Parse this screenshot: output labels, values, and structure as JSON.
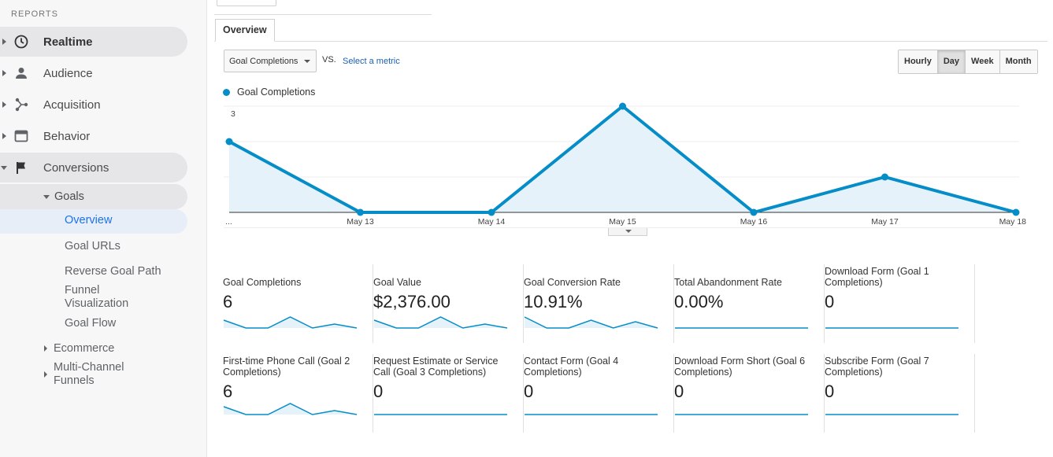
{
  "sidebar": {
    "heading": "REPORTS",
    "items": [
      {
        "label": "Realtime",
        "icon": "clock-icon"
      },
      {
        "label": "Audience",
        "icon": "person-icon"
      },
      {
        "label": "Acquisition",
        "icon": "acquisition-icon"
      },
      {
        "label": "Behavior",
        "icon": "behavior-icon"
      },
      {
        "label": "Conversions",
        "icon": "flag-icon"
      }
    ],
    "goals": {
      "label": "Goals",
      "children": [
        "Overview",
        "Goal URLs",
        "Reverse Goal Path",
        "Funnel Visualization",
        "Goal Flow"
      ]
    },
    "ecommerce": "Ecommerce",
    "multichannel": "Multi-Channel Funnels"
  },
  "main": {
    "tab": "Overview",
    "metric_select": "Goal Completions",
    "vs": "VS.",
    "select_metric": "Select a metric",
    "periods": [
      "Hourly",
      "Day",
      "Week",
      "Month"
    ],
    "active_period": "Day",
    "legend": "Goal Completions"
  },
  "colors": {
    "accent": "#058dc7",
    "fill": "#e6f2fa",
    "link": "#1a5fb4"
  },
  "chart_data": {
    "type": "line",
    "x": [
      "...",
      "May 13",
      "May 14",
      "May 15",
      "May 16",
      "May 17",
      "May 18"
    ],
    "series": [
      {
        "name": "Goal Completions",
        "values": [
          2,
          0,
          0,
          3,
          0,
          1,
          0
        ]
      }
    ],
    "yticks": [
      1,
      2,
      3
    ],
    "ylim": [
      0,
      3
    ],
    "grid": true
  },
  "scorecards": [
    {
      "title": "Goal Completions",
      "value": "6",
      "spark": [
        1,
        0,
        0,
        1.4,
        0,
        0.5,
        0
      ]
    },
    {
      "title": "Goal Value",
      "value": "$2,376.00",
      "spark": [
        1,
        0,
        0,
        1.4,
        0,
        0.5,
        0
      ]
    },
    {
      "title": "Goal Conversion Rate",
      "value": "10.91%",
      "spark": [
        1.4,
        0,
        0,
        1,
        0,
        0.8,
        0
      ]
    },
    {
      "title": "Total Abandonment Rate",
      "value": "0.00%",
      "spark": [
        0,
        0,
        0,
        0,
        0,
        0,
        0
      ]
    },
    {
      "title": "Download Form (Goal 1 Completions)",
      "value": "0",
      "spark": [
        0,
        0,
        0,
        0,
        0,
        0,
        0
      ]
    },
    {
      "title": "First-time Phone Call (Goal 2 Completions)",
      "value": "6",
      "spark": [
        1,
        0,
        0,
        1.4,
        0,
        0.5,
        0
      ]
    },
    {
      "title": "Request Estimate or Service Call (Goal 3 Completions)",
      "value": "0",
      "spark": [
        0,
        0,
        0,
        0,
        0,
        0,
        0
      ]
    },
    {
      "title": "Contact Form (Goal 4 Completions)",
      "value": "0",
      "spark": [
        0,
        0,
        0,
        0,
        0,
        0,
        0
      ]
    },
    {
      "title": "Download Form Short (Goal 6 Completions)",
      "value": "0",
      "spark": [
        0,
        0,
        0,
        0,
        0,
        0,
        0
      ]
    },
    {
      "title": "Subscribe Form (Goal 7 Completions)",
      "value": "0",
      "spark": [
        0,
        0,
        0,
        0,
        0,
        0,
        0
      ]
    }
  ]
}
